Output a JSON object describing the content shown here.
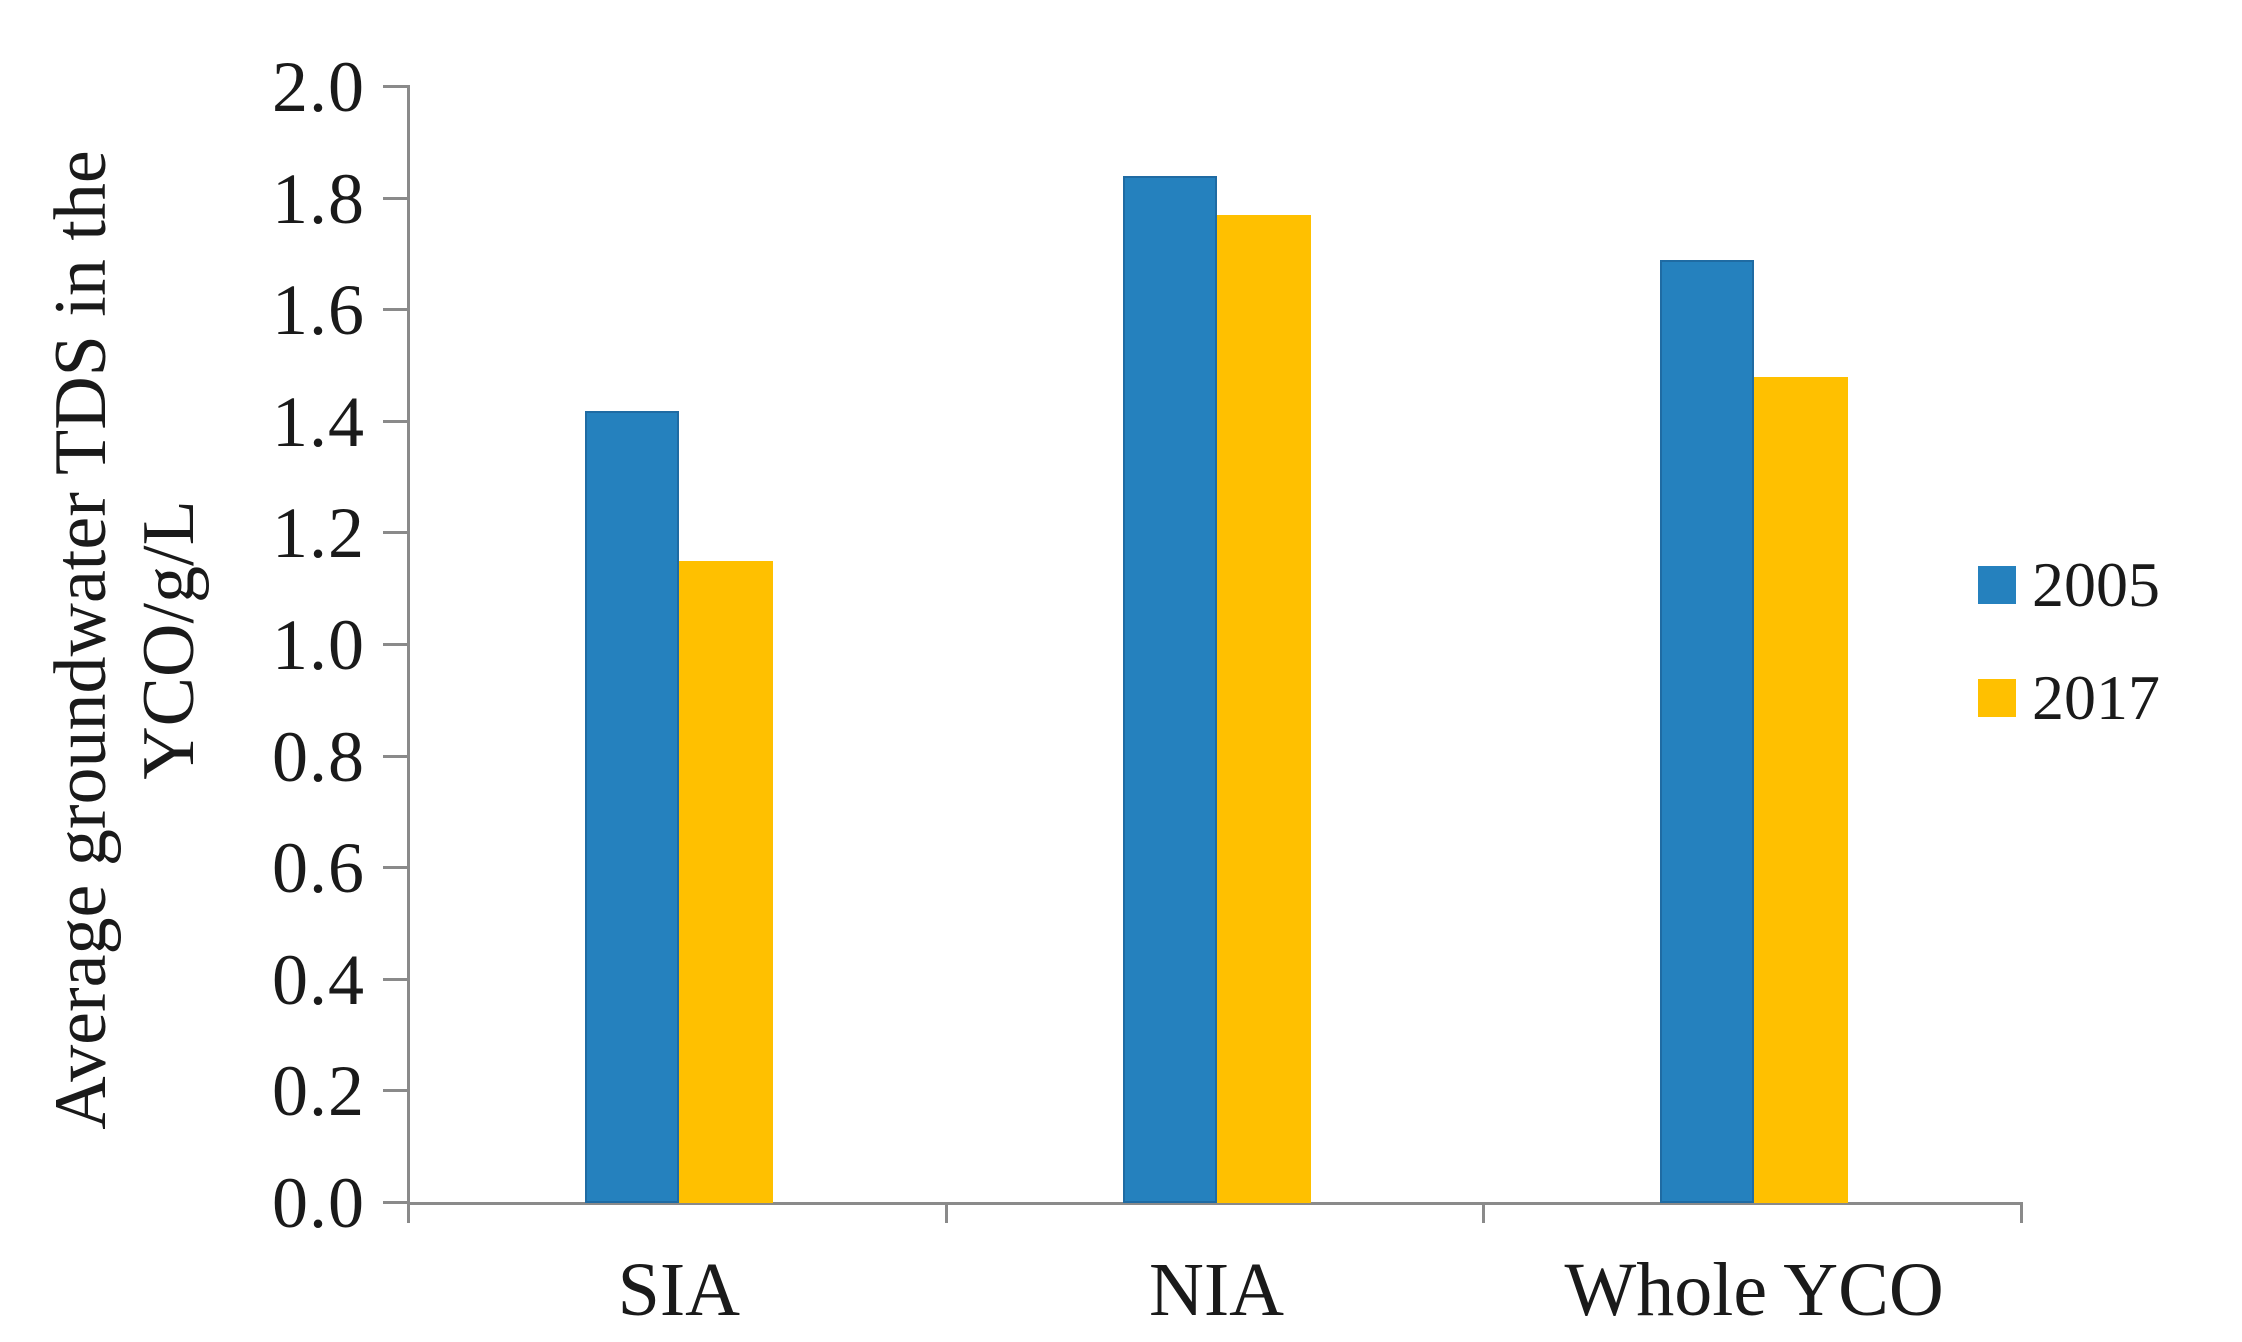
{
  "chart_data": {
    "type": "bar",
    "title": "",
    "ylabel_line1": "Average groundwater TDS in the",
    "ylabel_line2": "YCO/g/L",
    "categories": [
      "SIA",
      "NIA",
      "Whole YCO"
    ],
    "series": [
      {
        "name": "2005",
        "color": "#2581BE",
        "border_color": "#1f6ba3",
        "values": [
          1.42,
          1.84,
          1.69
        ]
      },
      {
        "name": "2017",
        "color": "#FFC000",
        "border_color": "#FFC000",
        "values": [
          1.15,
          1.77,
          1.48
        ]
      }
    ],
    "ylim": [
      0.0,
      2.0
    ],
    "ytick_step": 0.2,
    "ytick_labels": [
      "0.0",
      "0.2",
      "0.4",
      "0.6",
      "0.8",
      "1.0",
      "1.2",
      "1.4",
      "1.6",
      "1.8",
      "2.0"
    ],
    "grid": false,
    "legend_position": "right",
    "axis_color": "#8a8a8a",
    "text_color": "#1a1a1a"
  }
}
